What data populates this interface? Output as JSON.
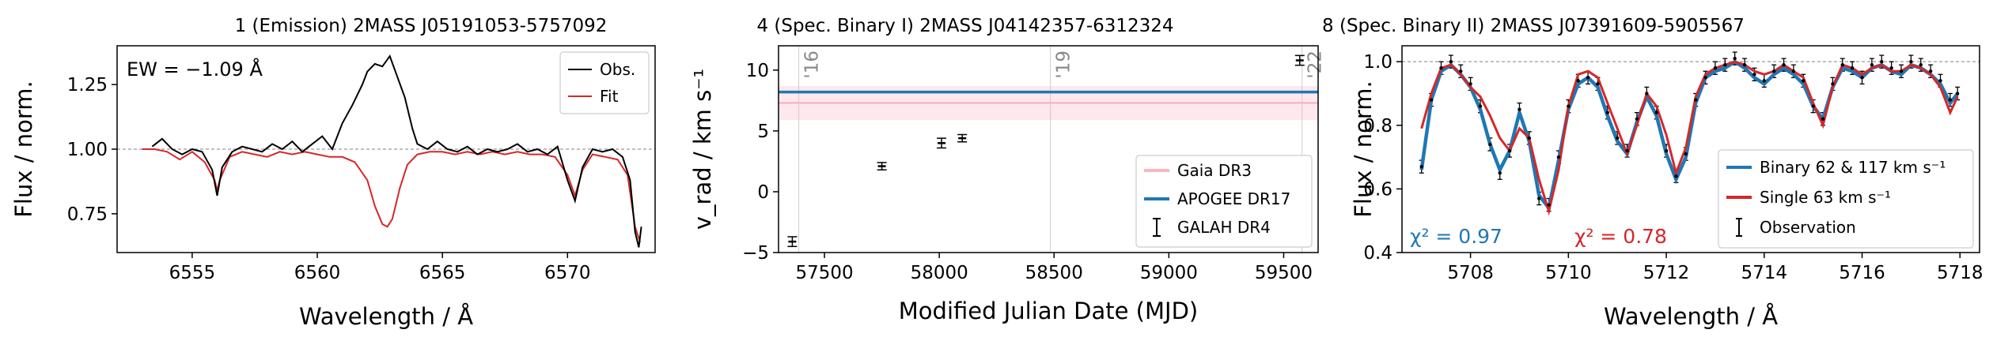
{
  "chart_data": [
    {
      "type": "line",
      "title": "1 (Emission) 2MASS J05191053-5757092",
      "xlabel": "Wavelength / Å",
      "ylabel": "Flux / norm.",
      "xlim": [
        6552.0,
        6573.5
      ],
      "ylim": [
        0.6,
        1.4
      ],
      "xticks": [
        6555,
        6560,
        6565,
        6570
      ],
      "xtick_labels": [
        "6555",
        "6560",
        "6565",
        "6570"
      ],
      "yticks": [
        0.75,
        1.0,
        1.25
      ],
      "ytick_labels": [
        "0.75",
        "1.00",
        "1.25"
      ],
      "reference_line_y": 1.0,
      "annotation": "EW = −1.09 Å",
      "legend_position": "top-right",
      "legend": [
        "Obs.",
        "Fit"
      ],
      "colors": {
        "obs": "#000000",
        "fit": "#d62728"
      },
      "series": [
        {
          "name": "Obs.",
          "x": [
            6553.4,
            6553.8,
            6554.2,
            6554.6,
            6555.0,
            6555.4,
            6555.8,
            6556.0,
            6556.2,
            6556.6,
            6557.0,
            6557.4,
            6557.8,
            6558.2,
            6558.6,
            6559.0,
            6559.4,
            6559.8,
            6560.2,
            6560.6,
            6561.0,
            6561.4,
            6561.8,
            6562.0,
            6562.3,
            6562.6,
            6562.9,
            6563.2,
            6563.5,
            6563.8,
            6564.0,
            6564.4,
            6564.8,
            6565.2,
            6565.6,
            6566.0,
            6566.4,
            6566.8,
            6567.2,
            6567.6,
            6568.0,
            6568.4,
            6568.8,
            6569.2,
            6569.6,
            6570.0,
            6570.3,
            6570.6,
            6571.0,
            6571.4,
            6571.8,
            6572.2,
            6572.5,
            6572.7,
            6572.85,
            6572.95
          ],
          "y": [
            1.01,
            1.04,
            1.0,
            0.98,
            1.0,
            0.99,
            0.92,
            0.82,
            0.93,
            0.99,
            1.01,
            1.0,
            0.99,
            1.02,
            1.0,
            1.03,
            0.99,
            1.02,
            1.05,
            1.0,
            1.1,
            1.17,
            1.25,
            1.3,
            1.33,
            1.32,
            1.36,
            1.28,
            1.2,
            1.08,
            1.02,
            1.0,
            1.03,
            1.0,
            0.99,
            1.01,
            0.98,
            1.0,
            0.99,
            1.0,
            1.02,
            0.99,
            1.0,
            0.98,
            1.01,
            0.88,
            0.8,
            0.93,
            1.0,
            0.99,
            1.0,
            0.97,
            0.88,
            0.68,
            0.62,
            0.7
          ]
        },
        {
          "name": "Fit",
          "x": [
            6553.0,
            6553.5,
            6554.0,
            6554.5,
            6555.0,
            6555.5,
            6555.9,
            6556.0,
            6556.1,
            6556.5,
            6557.0,
            6557.5,
            6558.0,
            6558.5,
            6559.0,
            6559.5,
            6560.0,
            6560.5,
            6561.0,
            6561.5,
            6562.0,
            6562.3,
            6562.6,
            6562.8,
            6563.0,
            6563.3,
            6563.6,
            6564.0,
            6564.5,
            6565.0,
            6565.5,
            6566.0,
            6566.5,
            6567.0,
            6567.5,
            6568.0,
            6568.5,
            6569.0,
            6569.5,
            6570.0,
            6570.3,
            6570.6,
            6571.0,
            6571.5,
            6572.0,
            6572.4,
            6572.7,
            6572.9
          ],
          "y": [
            1.0,
            1.0,
            0.99,
            0.96,
            0.99,
            0.95,
            0.88,
            0.84,
            0.88,
            0.97,
            0.99,
            0.98,
            0.97,
            0.99,
            0.98,
            0.99,
            0.98,
            0.97,
            0.97,
            0.95,
            0.88,
            0.78,
            0.71,
            0.7,
            0.73,
            0.85,
            0.94,
            0.98,
            0.99,
            0.99,
            0.98,
            0.99,
            0.98,
            0.99,
            0.98,
            0.99,
            0.98,
            0.98,
            0.97,
            0.9,
            0.82,
            0.92,
            0.98,
            0.97,
            0.96,
            0.9,
            0.7,
            0.64
          ]
        }
      ]
    },
    {
      "type": "scatter",
      "title": "4 (Spec. Binary I) 2MASS J04142357-6312324",
      "xlabel": "Modified Julian Date (MJD)",
      "ylabel": "v_rad / km s⁻¹",
      "xlim": [
        57300,
        59650
      ],
      "ylim": [
        -5,
        12
      ],
      "xticks": [
        57500,
        58000,
        58500,
        59000,
        59500
      ],
      "xtick_labels": [
        "57500",
        "58000",
        "58500",
        "59000",
        "59500"
      ],
      "yticks": [
        -5,
        0,
        5,
        10
      ],
      "ytick_labels": [
        "−5",
        "0",
        "5",
        "10"
      ],
      "year_markers": [
        {
          "x": 57388,
          "label": "'16"
        },
        {
          "x": 58484,
          "label": "'19"
        },
        {
          "x": 59580,
          "label": "'22"
        }
      ],
      "legend_position": "bottom-right",
      "legend": [
        "Gaia DR3",
        "APOGEE DR17",
        "GALAH DR4"
      ],
      "colors": {
        "gaia": "#f7b6c2",
        "apogee": "#1f77b4",
        "galah": "#000000"
      },
      "gaia_dr3": {
        "value": 7.3,
        "low": 5.9,
        "high": 8.7
      },
      "apogee_dr17": {
        "value": 8.2
      },
      "galah_dr4": {
        "x": [
          57360,
          57750,
          58010,
          58100,
          59570
        ],
        "y": [
          -4.1,
          2.1,
          4.0,
          4.4,
          10.8
        ],
        "yerr": [
          0.4,
          0.3,
          0.4,
          0.3,
          0.4
        ]
      }
    },
    {
      "type": "line",
      "title": "8 (Spec. Binary II) 2MASS J07391609-5905567",
      "xlabel": "Wavelength / Å",
      "ylabel": "Flux / norm.",
      "xlim": [
        5706.6,
        5718.4
      ],
      "ylim": [
        0.4,
        1.05
      ],
      "xticks": [
        5708,
        5710,
        5712,
        5714,
        5716,
        5718
      ],
      "xtick_labels": [
        "5708",
        "5710",
        "5712",
        "5714",
        "5716",
        "5718"
      ],
      "yticks": [
        0.4,
        0.6,
        0.8,
        1.0
      ],
      "ytick_labels": [
        "0.4",
        "0.6",
        "0.8",
        "1.0"
      ],
      "reference_line_y": 1.0,
      "annotations": [
        {
          "text": "χ² = 0.97",
          "color": "#1f77b4"
        },
        {
          "text": "χ² = 0.78",
          "color": "#d62728"
        }
      ],
      "legend_position": "bottom-right",
      "legend": [
        "Binary 62 & 117 km s⁻¹",
        "Single 63 km s⁻¹",
        "Observation"
      ],
      "colors": {
        "binary": "#1f77b4",
        "single": "#d62728",
        "observation": "#000000"
      },
      "series": [
        {
          "name": "Observation",
          "x": [
            5707.0,
            5707.2,
            5707.4,
            5707.6,
            5707.8,
            5708.0,
            5708.2,
            5708.4,
            5708.6,
            5708.8,
            5709.0,
            5709.2,
            5709.4,
            5709.6,
            5709.8,
            5710.0,
            5710.2,
            5710.4,
            5710.6,
            5710.8,
            5711.0,
            5711.2,
            5711.4,
            5711.6,
            5711.8,
            5712.0,
            5712.2,
            5712.4,
            5712.6,
            5712.8,
            5713.0,
            5713.2,
            5713.4,
            5713.6,
            5713.8,
            5714.0,
            5714.2,
            5714.4,
            5714.6,
            5714.8,
            5715.0,
            5715.2,
            5715.4,
            5715.6,
            5715.8,
            5716.0,
            5716.2,
            5716.4,
            5716.6,
            5716.8,
            5717.0,
            5717.2,
            5717.4,
            5717.6,
            5717.8,
            5717.95
          ],
          "y": [
            0.67,
            0.88,
            0.98,
            1.0,
            0.97,
            0.93,
            0.86,
            0.74,
            0.65,
            0.72,
            0.85,
            0.76,
            0.57,
            0.55,
            0.7,
            0.86,
            0.94,
            0.95,
            0.93,
            0.84,
            0.76,
            0.72,
            0.82,
            0.9,
            0.84,
            0.72,
            0.64,
            0.71,
            0.88,
            0.95,
            0.98,
            0.99,
            1.01,
            0.99,
            0.96,
            0.94,
            0.97,
            0.99,
            0.97,
            0.94,
            0.86,
            0.82,
            0.93,
            0.99,
            0.98,
            0.95,
            0.99,
            1.0,
            0.98,
            0.97,
            1.0,
            0.99,
            0.97,
            0.94,
            0.88,
            0.9
          ]
        },
        {
          "name": "Binary 62 & 117 km s⁻¹",
          "x": [
            5707.0,
            5707.2,
            5707.4,
            5707.6,
            5707.8,
            5708.0,
            5708.2,
            5708.4,
            5708.6,
            5708.8,
            5709.0,
            5709.2,
            5709.4,
            5709.6,
            5709.8,
            5710.0,
            5710.2,
            5710.4,
            5710.6,
            5710.8,
            5711.0,
            5711.2,
            5711.4,
            5711.6,
            5711.8,
            5712.0,
            5712.2,
            5712.4,
            5712.6,
            5712.8,
            5713.0,
            5713.2,
            5713.4,
            5713.6,
            5713.8,
            5714.0,
            5714.2,
            5714.4,
            5714.6,
            5714.8,
            5715.0,
            5715.2,
            5715.4,
            5715.6,
            5715.8,
            5716.0,
            5716.2,
            5716.4,
            5716.6,
            5716.8,
            5717.0,
            5717.2,
            5717.4,
            5717.6,
            5717.8,
            5717.95
          ],
          "y": [
            0.66,
            0.88,
            0.97,
            0.99,
            0.96,
            0.92,
            0.85,
            0.74,
            0.66,
            0.72,
            0.84,
            0.75,
            0.58,
            0.54,
            0.69,
            0.85,
            0.93,
            0.95,
            0.92,
            0.83,
            0.75,
            0.71,
            0.81,
            0.89,
            0.83,
            0.71,
            0.63,
            0.7,
            0.87,
            0.95,
            0.97,
            0.98,
            1.0,
            0.98,
            0.95,
            0.93,
            0.96,
            0.98,
            0.96,
            0.93,
            0.86,
            0.82,
            0.92,
            0.98,
            0.97,
            0.95,
            0.98,
            0.99,
            0.97,
            0.96,
            0.99,
            0.98,
            0.96,
            0.93,
            0.87,
            0.9
          ]
        },
        {
          "name": "Single 63 km s⁻¹",
          "x": [
            5707.0,
            5707.2,
            5707.4,
            5707.6,
            5707.8,
            5708.0,
            5708.2,
            5708.4,
            5708.6,
            5708.8,
            5709.0,
            5709.2,
            5709.4,
            5709.6,
            5709.8,
            5710.0,
            5710.2,
            5710.4,
            5710.6,
            5710.8,
            5711.0,
            5711.2,
            5711.4,
            5711.6,
            5711.8,
            5712.0,
            5712.2,
            5712.4,
            5712.6,
            5712.8,
            5713.0,
            5713.2,
            5713.4,
            5713.6,
            5713.8,
            5714.0,
            5714.2,
            5714.4,
            5714.6,
            5714.8,
            5715.0,
            5715.2,
            5715.4,
            5715.6,
            5715.8,
            5716.0,
            5716.2,
            5716.4,
            5716.6,
            5716.8,
            5717.0,
            5717.2,
            5717.4,
            5717.6,
            5717.8,
            5717.95
          ],
          "y": [
            0.79,
            0.9,
            0.98,
            0.99,
            0.96,
            0.92,
            0.89,
            0.83,
            0.76,
            0.72,
            0.79,
            0.76,
            0.63,
            0.53,
            0.66,
            0.86,
            0.96,
            0.97,
            0.95,
            0.87,
            0.79,
            0.71,
            0.8,
            0.9,
            0.86,
            0.77,
            0.65,
            0.73,
            0.89,
            0.96,
            0.98,
            0.99,
            1.0,
            0.99,
            0.97,
            0.96,
            0.97,
            0.99,
            0.97,
            0.95,
            0.87,
            0.8,
            0.92,
            0.99,
            0.98,
            0.96,
            0.98,
            0.99,
            0.97,
            0.97,
            0.99,
            0.98,
            0.96,
            0.92,
            0.84,
            0.89
          ]
        }
      ]
    }
  ]
}
